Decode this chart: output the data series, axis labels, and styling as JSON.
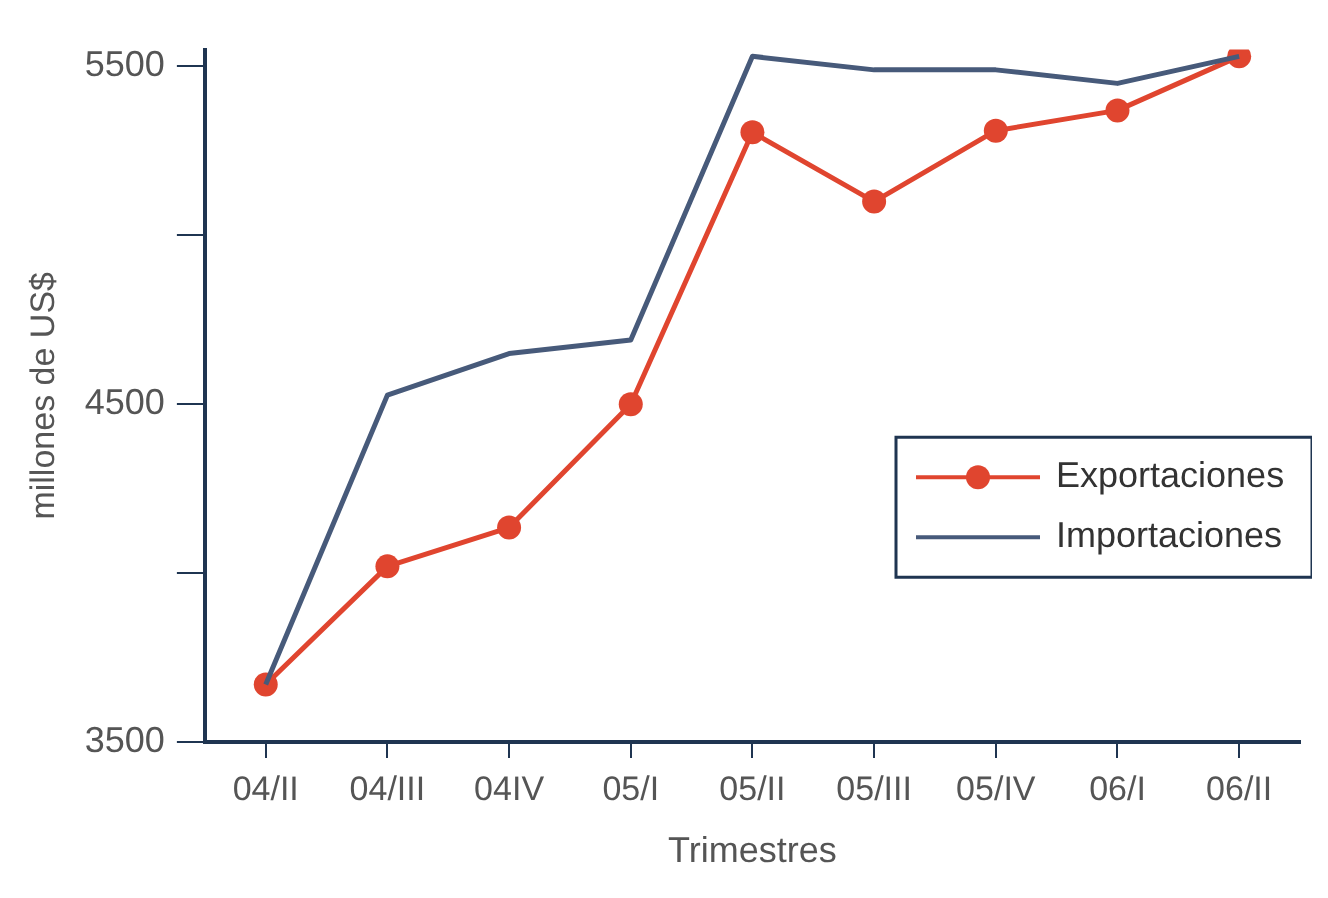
{
  "chart_data": {
    "type": "line",
    "xlabel": "Trimestres",
    "ylabel": "millones de US$",
    "categories": [
      "04/II",
      "04/III",
      "04IV",
      "05/I",
      "05/II",
      "05/III",
      "05/IV",
      "06/I",
      "06/II"
    ],
    "series": [
      {
        "name": "Exportaciones",
        "color": "#e0452f",
        "marker": "circle",
        "values": [
          3670,
          4020,
          4135,
          4500,
          5305,
          5100,
          5310,
          5370,
          5530
        ]
      },
      {
        "name": "Importaciones",
        "color": "#475a7a",
        "marker": "none",
        "values": [
          3670,
          4527,
          4650,
          4690,
          5530,
          5490,
          5490,
          5450,
          5530
        ]
      }
    ],
    "ylim": [
      3500,
      5550
    ],
    "yticks": [
      3500,
      {
        "value": 4000,
        "label": null
      },
      4500,
      {
        "value": 5000,
        "label": null
      },
      5500
    ],
    "grid": false,
    "legend": "right",
    "line_style": "solid"
  }
}
